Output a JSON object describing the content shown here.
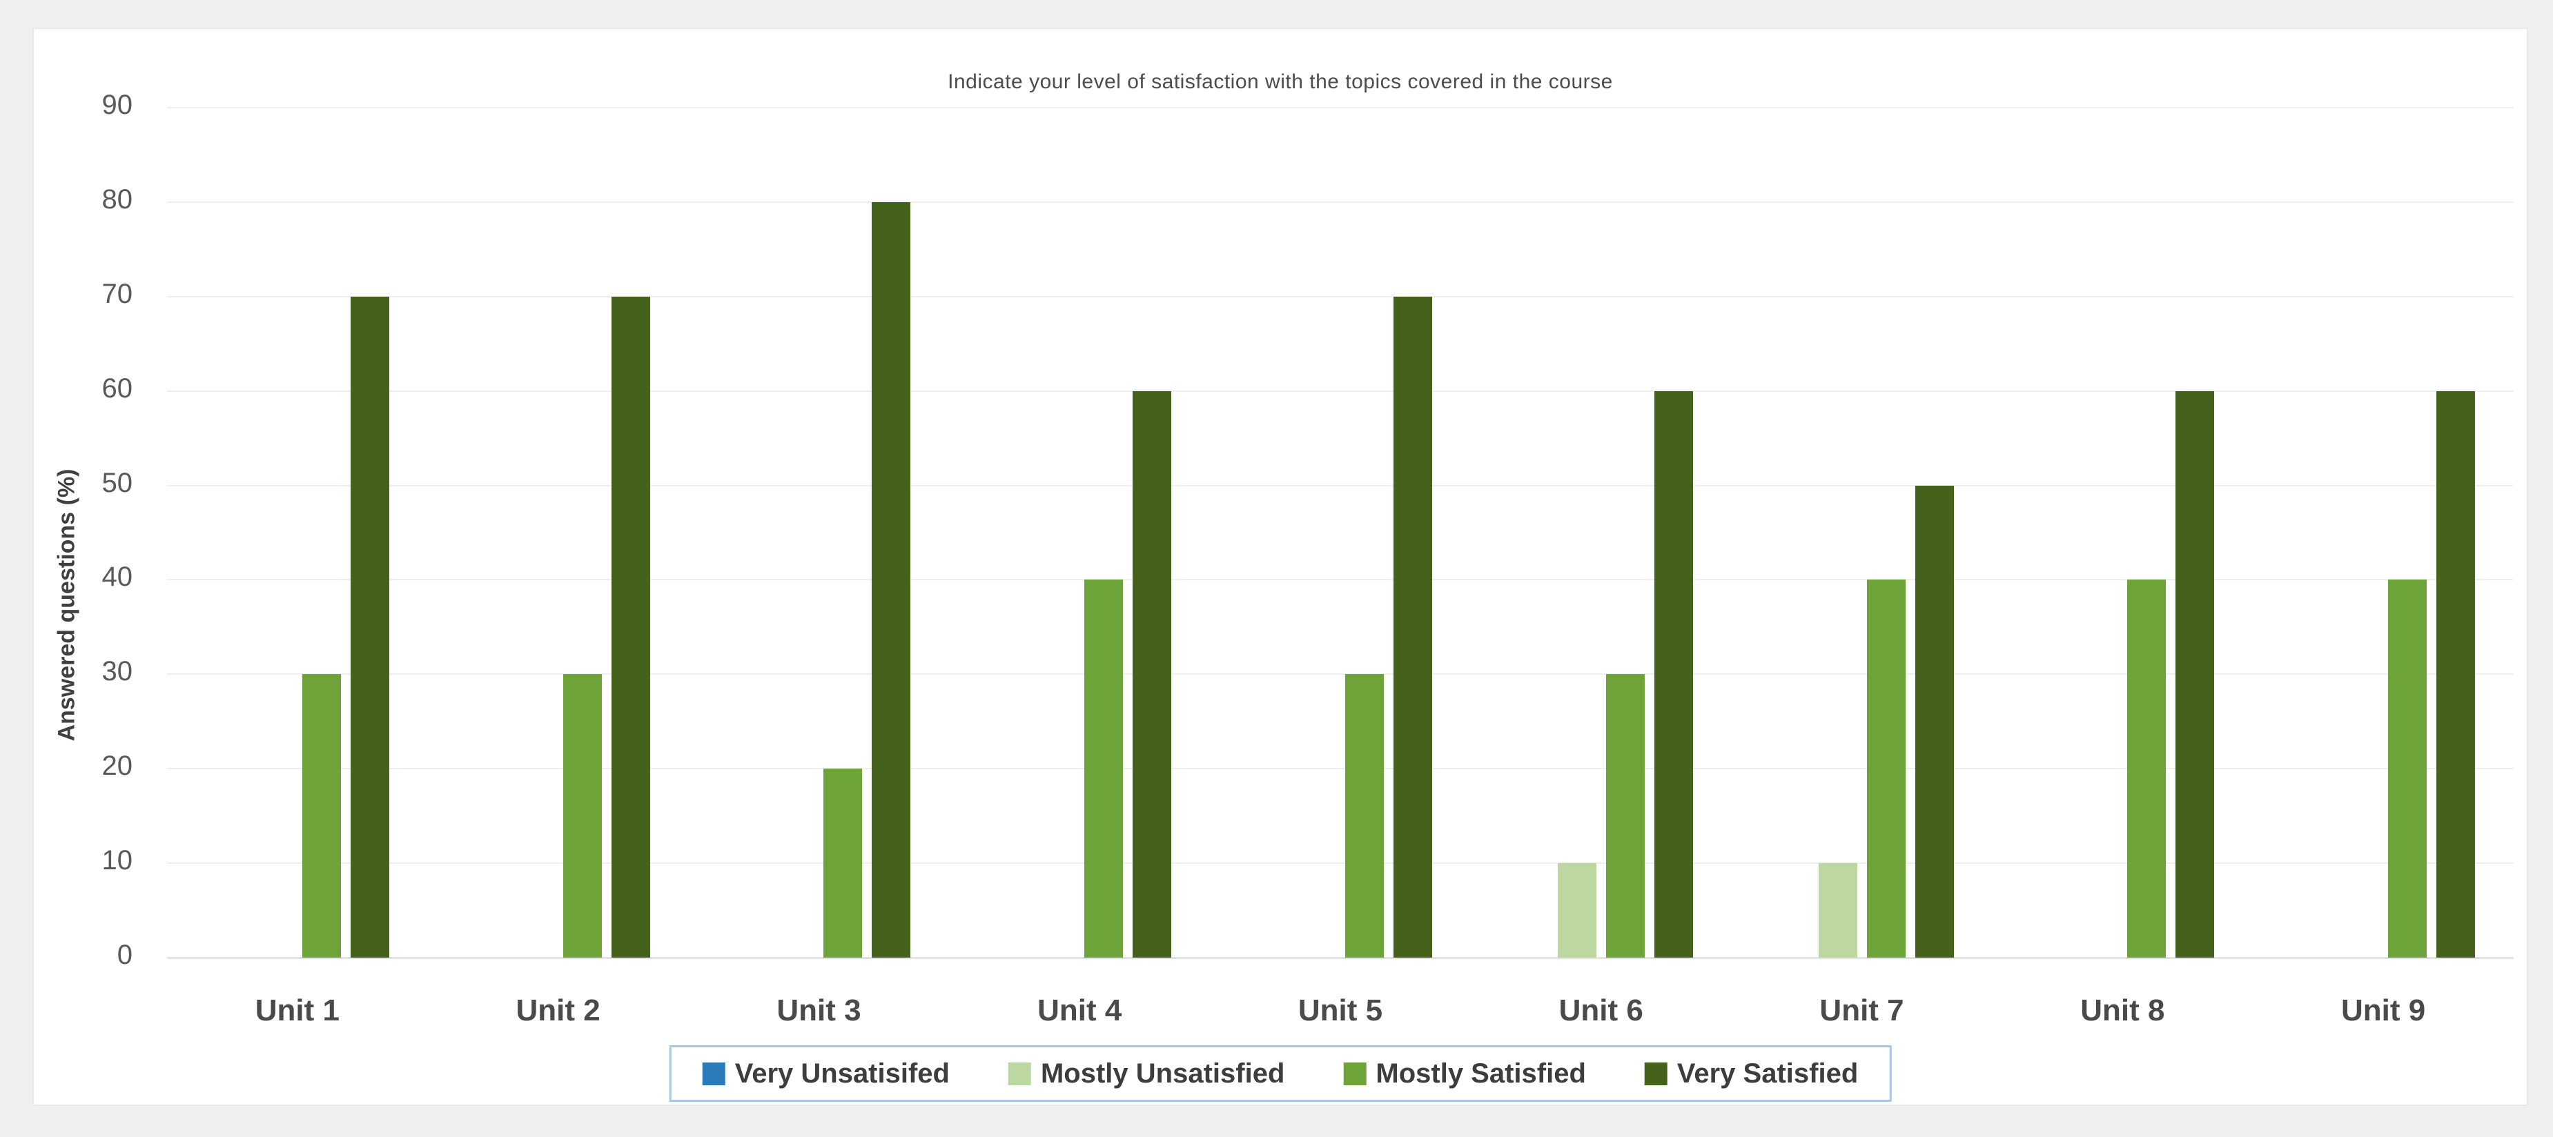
{
  "page": {
    "background_color": "#f0f0f1",
    "card_color": "#ffffff"
  },
  "chart_data": {
    "type": "bar",
    "title": "Indicate your level of satisfaction with the topics covered in the course",
    "xlabel": "",
    "ylabel": "Answered questions (%)",
    "categories": [
      "Unit 1",
      "Unit 2",
      "Unit 3",
      "Unit 4",
      "Unit 5",
      "Unit 6",
      "Unit 7",
      "Unit 8",
      "Unit 9"
    ],
    "series": [
      {
        "name": "Very Unsatisifed",
        "color": "#2b7bba",
        "values": [
          0,
          0,
          0,
          0,
          0,
          0,
          0,
          0,
          0
        ]
      },
      {
        "name": "Mostly Unsatisfied",
        "color": "#bdd7a0",
        "values": [
          0,
          0,
          0,
          0,
          0,
          10,
          10,
          0,
          0
        ]
      },
      {
        "name": "Mostly Satisfied",
        "color": "#6da339",
        "values": [
          30,
          30,
          20,
          40,
          30,
          30,
          40,
          40,
          40
        ]
      },
      {
        "name": "Very Satisfied",
        "color": "#45621d",
        "values": [
          70,
          70,
          80,
          60,
          70,
          60,
          50,
          60,
          60
        ]
      }
    ],
    "ylim": [
      0,
      90
    ],
    "ytick_step": 10,
    "grid": "horizontal",
    "legend_position": "bottom",
    "gridline_color": "#efefef",
    "baseline_color": "#e2e2e2",
    "legend_border_color": "#a9c7e4"
  }
}
